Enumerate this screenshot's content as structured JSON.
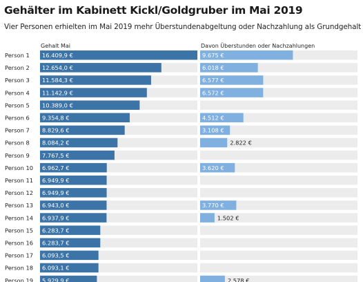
{
  "title": "Gehälter im Kabinett Kickl/Goldgruber im Mai 2019",
  "subtitle": "Vier Personen erhielten im Mai 2019 mehr Überstundenabgeltung oder Nachzahlung als Grundgehalt",
  "colors": {
    "salary_bar": "#3d74a7",
    "overtime_bar": "#7fb0df",
    "row_bg": "#ececec",
    "label_on_bar": "#ffffff",
    "label_off_bar": "#222222"
  },
  "chart_data": {
    "type": "bar",
    "orientation": "horizontal",
    "categories": [
      "Person 1",
      "Person 2",
      "Person 3",
      "Person 4",
      "Person 5",
      "Person 6",
      "Person 7",
      "Person 8",
      "Person 9",
      "Person 10",
      "Person 11",
      "Person 12",
      "Person 13",
      "Person 14",
      "Person 15",
      "Person 16",
      "Person 17",
      "Person 18",
      "Person 19"
    ],
    "series": [
      {
        "name": "Gehalt Mai",
        "values": [
          16409.9,
          12654.0,
          11584.3,
          11142.9,
          10389.0,
          9354.8,
          8829.6,
          8084.2,
          7767.5,
          6962.7,
          6949.9,
          6949.9,
          6943.0,
          6937.9,
          6283.7,
          6283.7,
          6093.5,
          6093.1,
          5929.9
        ],
        "labels": [
          "16.409,9 €",
          "12.654,0 €",
          "11.584,3 €",
          "11.142,9 €",
          "10.389,0 €",
          "9.354,8 €",
          "8.829,6 €",
          "8.084,2 €",
          "7.767,5 €",
          "6.962,7 €",
          "6.949,9 €",
          "6.949,9 €",
          "6.943,0 €",
          "6.937,9 €",
          "6.283,7 €",
          "6.283,7 €",
          "6.093,5 €",
          "6.093,1 €",
          "5.929,9 €"
        ]
      },
      {
        "name": "Davon Überstunden oder Nachzahlungen",
        "values": [
          9675,
          6018,
          6577,
          6572,
          null,
          4512,
          3108,
          2822,
          null,
          3620,
          null,
          null,
          3770,
          1502,
          null,
          null,
          null,
          null,
          2578
        ],
        "labels": [
          "9.675 €",
          "6.018 €",
          "6.577 €",
          "6.572 €",
          "",
          "4.512 €",
          "3.108 €",
          "2.822 €",
          "",
          "3.620 €",
          "",
          "",
          "3.770 €",
          "1.502 €",
          "",
          "",
          "",
          "",
          "2.578 €"
        ]
      }
    ],
    "grid": false,
    "legend": "none"
  }
}
